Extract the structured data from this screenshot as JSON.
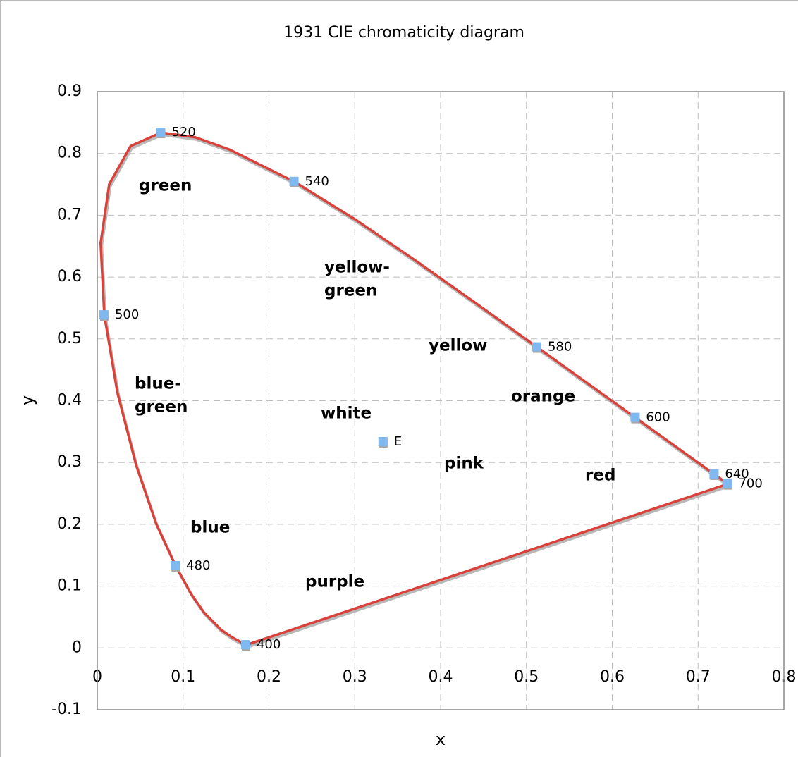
{
  "chart_data": {
    "type": "scatter",
    "title": "1931 CIE chromaticity diagram",
    "x_label": "x",
    "y_label": "y",
    "xlim": [
      0,
      0.8
    ],
    "ylim": [
      -0.1,
      0.9
    ],
    "xticks": [
      0,
      0.1,
      0.2,
      0.3,
      0.4,
      0.5,
      0.6,
      0.7,
      0.8
    ],
    "yticks": [
      -0.1,
      0,
      0.1,
      0.2,
      0.3,
      0.4,
      0.5,
      0.6,
      0.7,
      0.8,
      0.9
    ],
    "grid": true,
    "series": [
      {
        "type": "line",
        "color": "#d9423a",
        "x": [
          0.1733,
          0.1566,
          0.144,
          0.1241,
          0.1096,
          0.0913,
          0.0687,
          0.0454,
          0.0235,
          0.0082,
          0.0039,
          0.0139,
          0.0389,
          0.0743,
          0.1142,
          0.1547,
          0.2296,
          0.3016,
          0.3731,
          0.4441,
          0.5125,
          0.5752,
          0.627,
          0.6915,
          0.719,
          0.7347,
          0.1733
        ],
        "y": [
          0.0048,
          0.0177,
          0.0297,
          0.0578,
          0.0868,
          0.1327,
          0.2007,
          0.295,
          0.4127,
          0.5384,
          0.6548,
          0.7502,
          0.812,
          0.8338,
          0.8262,
          0.8059,
          0.7543,
          0.6923,
          0.6245,
          0.5547,
          0.4866,
          0.4242,
          0.3725,
          0.3083,
          0.2809,
          0.2653,
          0.0048
        ]
      },
      {
        "type": "scatter",
        "color": "#80b8f0",
        "x": [
          0.1733,
          0.0913,
          0.0082,
          0.0743,
          0.2296,
          0.5125,
          0.627,
          0.719,
          0.7347,
          0.3333
        ],
        "y": [
          0.0048,
          0.1327,
          0.5384,
          0.8338,
          0.7543,
          0.4866,
          0.3725,
          0.2809,
          0.2653,
          0.3333
        ],
        "labels": [
          "400",
          "480",
          "500",
          "520",
          "540",
          "580",
          "600",
          "640",
          "700",
          "E"
        ]
      }
    ],
    "annotations": [
      {
        "lines": [
          "green"
        ],
        "color": "#167a1a"
      },
      {
        "lines": [
          "yellow-",
          "green"
        ],
        "color": "#a6c81a"
      },
      {
        "lines": [
          "yellow"
        ],
        "color": "#f5c400"
      },
      {
        "lines": [
          "blue-",
          "green"
        ],
        "color": "#14938f"
      },
      {
        "lines": [
          "white"
        ],
        "color": "#000000"
      },
      {
        "lines": [
          "orange"
        ],
        "color": "#f47f12"
      },
      {
        "lines": [
          "pink"
        ],
        "color": "#e8318a"
      },
      {
        "lines": [
          "red"
        ],
        "color": "#e0291a"
      },
      {
        "lines": [
          "blue"
        ],
        "color": "#1a2fd0"
      },
      {
        "lines": [
          "purple"
        ],
        "color": "#8a3cf0"
      }
    ]
  }
}
